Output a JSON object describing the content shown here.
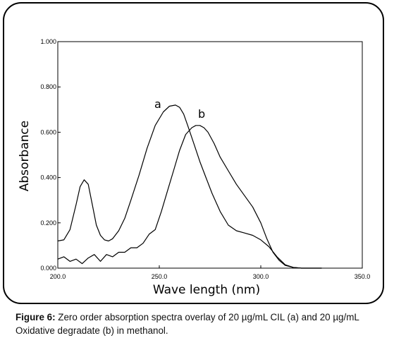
{
  "caption": {
    "label": "Figure 6:",
    "text": "Zero order absorption spectra overlay of 20 µg/mL CIL (a) and 20 µg/mL Oxidative degradate (b) in methanol."
  },
  "chart_data": {
    "type": "line",
    "xlabel": "Wave length (nm)",
    "ylabel": "Absorbance",
    "xlim": [
      200,
      350
    ],
    "ylim": [
      0,
      1
    ],
    "x_ticks": [
      "200.0",
      "250.0",
      "300.0",
      "350.0"
    ],
    "y_ticks": [
      "0.000",
      "0.200",
      "0.400",
      "0.600",
      "0.800",
      "1.000"
    ],
    "annotations": [
      "a",
      "b"
    ],
    "series": [
      {
        "name": "a",
        "color": "#000000",
        "x": [
          200,
          203,
          206,
          209,
          211,
          213,
          215,
          217,
          219,
          221,
          223,
          225,
          227,
          230,
          233,
          236,
          240,
          244,
          248,
          252,
          255,
          258,
          260,
          262,
          264,
          267,
          270,
          273,
          276,
          280,
          284,
          288,
          292,
          296,
          300,
          304,
          308,
          312,
          316,
          320,
          325,
          330
        ],
        "y": [
          0.12,
          0.125,
          0.17,
          0.28,
          0.36,
          0.39,
          0.37,
          0.28,
          0.19,
          0.145,
          0.125,
          0.12,
          0.13,
          0.165,
          0.22,
          0.3,
          0.41,
          0.53,
          0.63,
          0.69,
          0.715,
          0.72,
          0.71,
          0.68,
          0.63,
          0.55,
          0.47,
          0.4,
          0.33,
          0.25,
          0.19,
          0.165,
          0.155,
          0.145,
          0.125,
          0.095,
          0.05,
          0.015,
          0.003,
          0.0,
          0.0,
          0.0
        ]
      },
      {
        "name": "b",
        "color": "#000000",
        "x": [
          200,
          203,
          206,
          209,
          212,
          215,
          218,
          221,
          224,
          227,
          230,
          233,
          236,
          239,
          242,
          245,
          248,
          251,
          254,
          257,
          260,
          263,
          266,
          268,
          270,
          272,
          274,
          277,
          280,
          284,
          288,
          292,
          296,
          300,
          303,
          306,
          309,
          312,
          316,
          320,
          325,
          330
        ],
        "y": [
          0.04,
          0.05,
          0.03,
          0.04,
          0.02,
          0.045,
          0.06,
          0.03,
          0.06,
          0.05,
          0.07,
          0.07,
          0.09,
          0.09,
          0.11,
          0.15,
          0.17,
          0.25,
          0.34,
          0.43,
          0.52,
          0.59,
          0.62,
          0.63,
          0.63,
          0.62,
          0.6,
          0.55,
          0.49,
          0.43,
          0.37,
          0.32,
          0.27,
          0.2,
          0.13,
          0.07,
          0.035,
          0.012,
          0.003,
          0.0,
          0.0,
          0.0
        ]
      }
    ],
    "grid": false
  }
}
